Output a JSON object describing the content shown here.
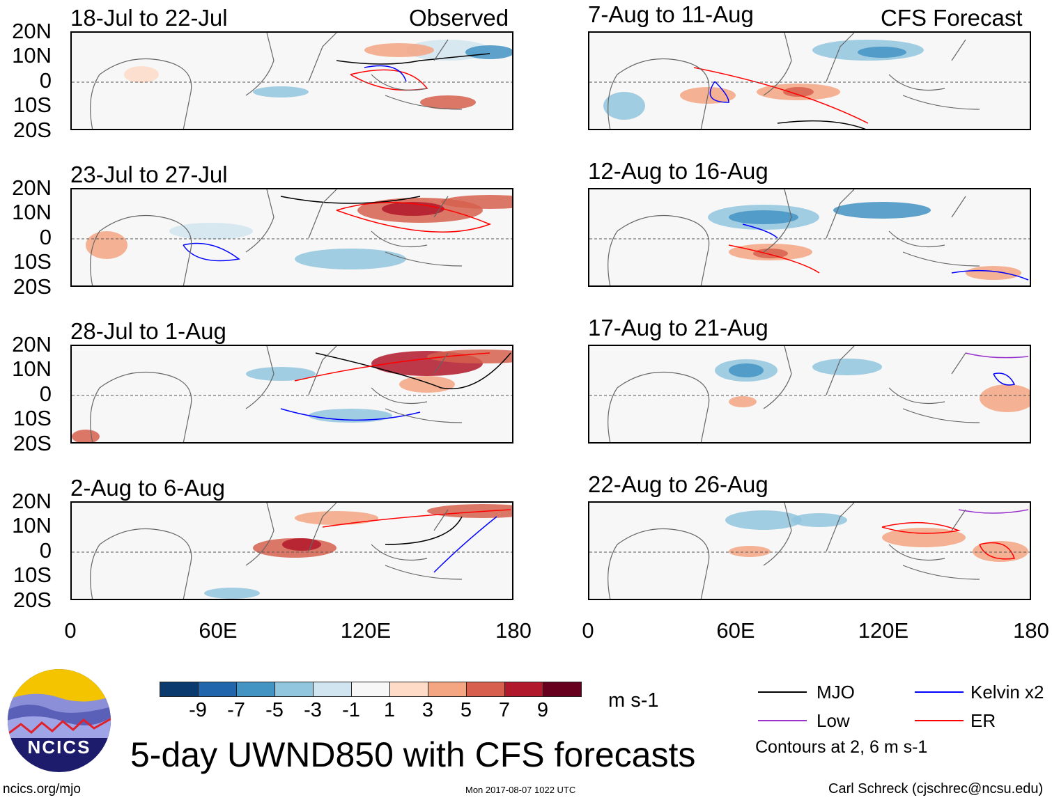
{
  "header": {
    "observed_label": "Observed",
    "forecast_label": "CFS Forecast"
  },
  "panels": {
    "observed": [
      "18-Jul to 22-Jul",
      "23-Jul to 27-Jul",
      "28-Jul to 1-Aug",
      "2-Aug to 6-Aug"
    ],
    "forecast": [
      "7-Aug to 11-Aug",
      "12-Aug to 16-Aug",
      "17-Aug to 21-Aug",
      "22-Aug to 26-Aug"
    ]
  },
  "axes": {
    "lat_labels": [
      "20N",
      "10N",
      "0",
      "10S",
      "20S"
    ],
    "lon_labels": [
      "0",
      "60E",
      "120E",
      "180"
    ],
    "lat_range": [
      -20,
      20
    ],
    "lon_range": [
      0,
      180
    ]
  },
  "colorbar": {
    "labels": [
      "-9",
      "-7",
      "-5",
      "-3",
      "-1",
      "1",
      "3",
      "5",
      "7",
      "9"
    ],
    "colors": [
      "#0b3a6e",
      "#2166ac",
      "#4393c3",
      "#92c5de",
      "#d1e5f0",
      "#f7f7f7",
      "#fddbc7",
      "#f4a582",
      "#d6604d",
      "#b2182b",
      "#67001f"
    ],
    "units": "m s-1"
  },
  "legend": {
    "items": [
      {
        "label": "MJO",
        "color": "#000000"
      },
      {
        "label": "Kelvin x2",
        "color": "#0000ff"
      },
      {
        "label": "Low",
        "color": "#9933cc"
      },
      {
        "label": "ER",
        "color": "#ff0000"
      }
    ],
    "contours_note": "Contours at 2, 6 m s-1"
  },
  "title": "5-day UWND850 with CFS forecasts",
  "logo": {
    "text": "NCICS"
  },
  "footer": {
    "url": "ncics.org/mjo",
    "timestamp": "Mon 2017-08-07 1022 UTC",
    "credit": "Carl Schreck (cjschrec@ncsu.edu)"
  }
}
